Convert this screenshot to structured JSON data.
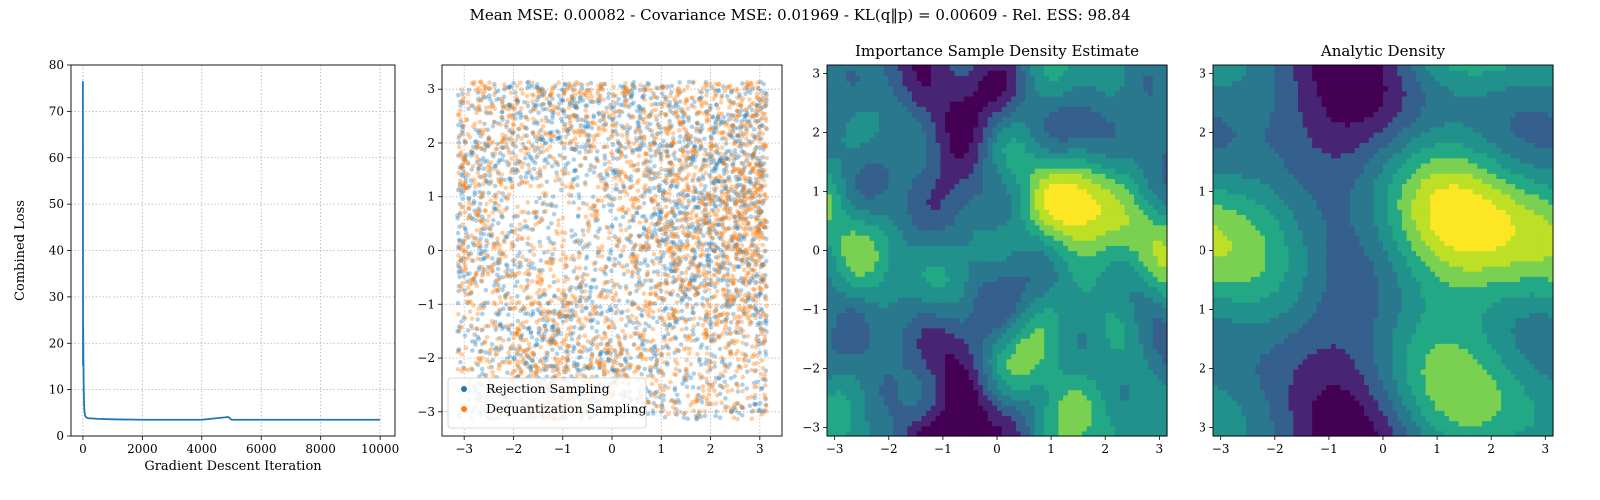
{
  "figure": {
    "suptitle": "Mean MSE: 0.00082 - Covariance MSE: 0.01969 - KL(q‖p) = 0.00609 - Rel. ESS: 98.84"
  },
  "colors": {
    "series_blue": "#1f77b4",
    "series_orange": "#ff7f0e",
    "grid": "#b0b0b0",
    "viridis": [
      "#440154",
      "#482475",
      "#414487",
      "#355f8d",
      "#2a788e",
      "#21918c",
      "#22a884",
      "#44bf70",
      "#7ad151",
      "#bddf26",
      "#fde725"
    ]
  },
  "chart_data": [
    {
      "type": "line",
      "title": "",
      "xlabel": "Gradient Descent Iteration",
      "ylabel": "Combined Loss",
      "xlim": [
        -400,
        10500
      ],
      "ylim": [
        0,
        80
      ],
      "xticks": [
        0,
        2000,
        4000,
        6000,
        8000,
        10000
      ],
      "yticks": [
        0,
        10,
        20,
        30,
        40,
        50,
        60,
        70,
        80
      ],
      "grid": true,
      "series": [
        {
          "x": [
            0,
            5,
            10,
            20,
            30,
            40,
            50,
            60,
            70,
            80,
            100,
            150,
            200,
            300,
            500,
            1000,
            2000,
            3000,
            4000,
            4900,
            5000,
            6000,
            7000,
            8000,
            9000,
            10000
          ],
          "y": [
            76.5,
            15.2,
            23.5,
            14.8,
            9.2,
            6.8,
            5.6,
            5.0,
            4.6,
            4.3,
            4.1,
            3.9,
            3.8,
            3.8,
            3.7,
            3.6,
            3.5,
            3.5,
            3.5,
            4.1,
            3.5,
            3.5,
            3.5,
            3.5,
            3.5,
            3.5
          ]
        }
      ]
    },
    {
      "type": "scatter",
      "title": "",
      "xlim": [
        -3.45,
        3.45
      ],
      "ylim": [
        -3.45,
        3.45
      ],
      "xticks": [
        -3,
        -2,
        -1,
        0,
        1,
        2,
        3
      ],
      "yticks": [
        -3,
        -2,
        -1,
        0,
        1,
        2,
        3
      ],
      "xtick_labels": [
        "−3",
        "−2",
        "−1",
        "0",
        "1",
        "2",
        "3"
      ],
      "ytick_labels": [
        "−3",
        "−2",
        "−1",
        "0",
        "1",
        "2",
        "3"
      ],
      "grid": true,
      "legend_position": "lower-left",
      "series": [
        {
          "name": "Rejection Sampling",
          "n_points": 2600,
          "domain": [
            -3.14,
            3.14
          ]
        },
        {
          "name": "Dequantization Sampling",
          "n_points": 2600,
          "domain": [
            -3.14,
            3.14
          ]
        }
      ]
    },
    {
      "type": "heatmap",
      "title": "Importance Sample Density Estimate",
      "xlim": [
        -3.14159,
        3.14159
      ],
      "ylim": [
        -3.14159,
        3.14159
      ],
      "xticks": [
        -3,
        -2,
        -1,
        0,
        1,
        2,
        3
      ],
      "yticks": [
        -3,
        -2,
        -1,
        0,
        1,
        2,
        3
      ],
      "xtick_labels": [
        "−3",
        "−2",
        "−1",
        "0",
        "1",
        "2",
        "3"
      ],
      "ytick_labels": [
        "−3",
        "−2",
        "−1",
        "0",
        "1",
        "2",
        "3"
      ],
      "grid": false,
      "colormap": "viridis",
      "levels": 9,
      "noisy": true
    },
    {
      "type": "heatmap",
      "title": "Analytic Density",
      "xlim": [
        -3.14159,
        3.14159
      ],
      "ylim": [
        -3.14159,
        3.14159
      ],
      "xticks": [
        -3,
        -2,
        -1,
        0,
        1,
        2,
        3
      ],
      "yticks": [
        -3,
        -2,
        -1,
        0,
        1,
        2,
        3
      ],
      "xtick_labels": [
        "−3",
        "−2",
        "−1",
        "0",
        "1",
        "2",
        "3"
      ],
      "ytick_labels": [
        "−3",
        "−2",
        "−1",
        "0",
        "1",
        "2",
        "3"
      ],
      "grid": false,
      "colormap": "viridis",
      "levels": 9,
      "noisy": false
    }
  ]
}
